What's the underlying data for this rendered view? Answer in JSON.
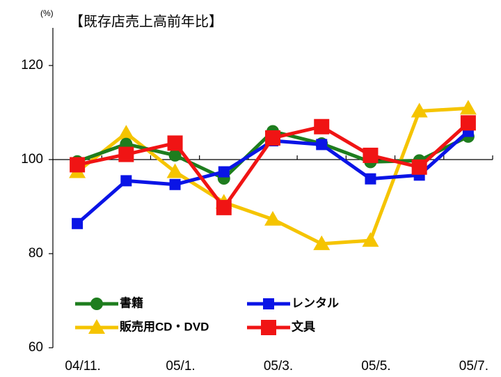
{
  "chart_data": {
    "type": "line",
    "title": "【既存店売上高前年比】",
    "y_unit": "(%)",
    "categories": [
      "04/11.",
      null,
      "05/1.",
      null,
      "05/3.",
      null,
      "05/5.",
      null,
      "05/7."
    ],
    "series": [
      {
        "name": "書籍",
        "color": "#1e7d1e",
        "marker": "circle",
        "values": [
          99.6,
          103.3,
          100.9,
          96.0,
          106.0,
          103.4,
          99.5,
          99.8,
          104.9
        ]
      },
      {
        "name": "レンタル",
        "color": "#0a14e6",
        "marker": "square",
        "values": [
          86.4,
          95.5,
          94.7,
          97.4,
          104.0,
          103.2,
          95.9,
          96.7,
          106.0
        ]
      },
      {
        "name": "販売用CD・DVD",
        "color": "#f5c400",
        "marker": "triangle",
        "values": [
          97.4,
          105.6,
          97.4,
          90.9,
          87.3,
          82.1,
          82.8,
          110.3,
          110.9
        ]
      },
      {
        "name": "文具",
        "color": "#f01414",
        "marker": "bigsquare",
        "values": [
          98.9,
          101.1,
          103.5,
          89.8,
          104.6,
          107.0,
          100.9,
          98.4,
          107.8
        ]
      }
    ],
    "ylim": [
      60,
      128
    ],
    "yticks": [
      60,
      80,
      100,
      120
    ],
    "xaxis_crosses": 100
  }
}
